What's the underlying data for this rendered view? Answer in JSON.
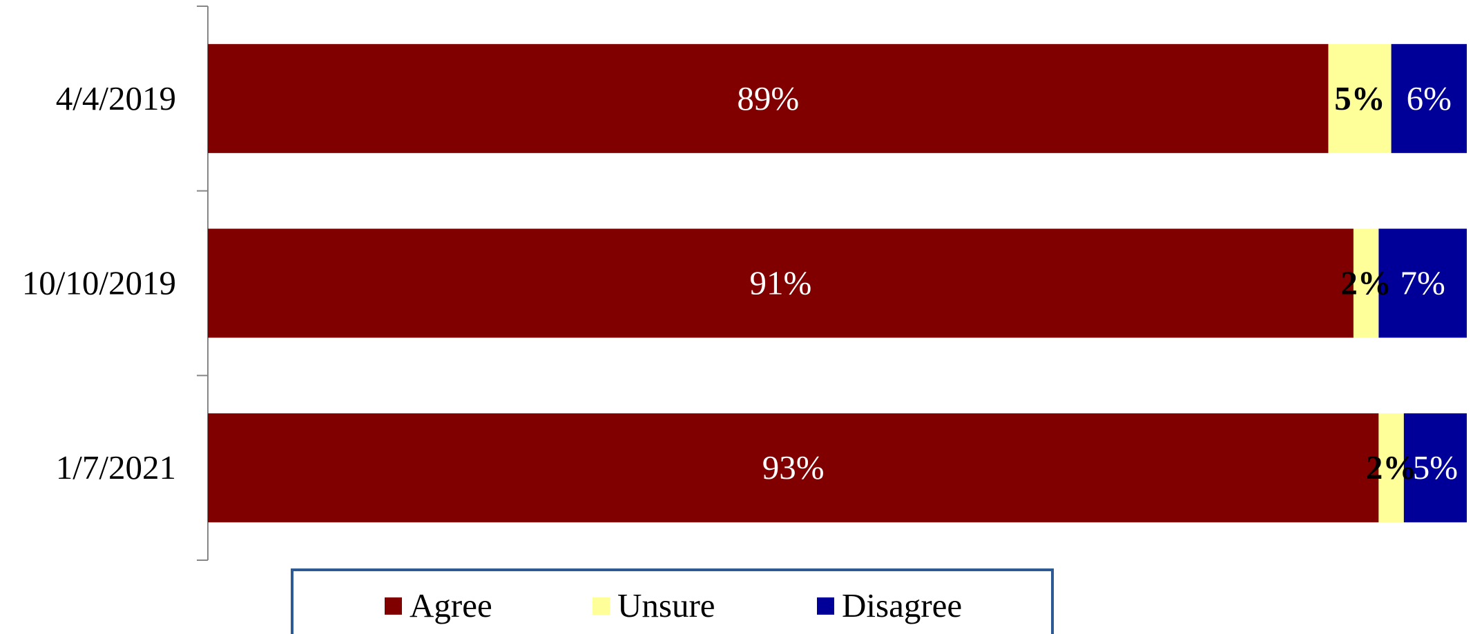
{
  "chart_data": {
    "type": "bar",
    "orientation": "horizontal",
    "stacked": true,
    "categories": [
      "4/4/2019",
      "10/10/2019",
      "1/7/2021"
    ],
    "series": [
      {
        "name": "Agree",
        "values": [
          89,
          91,
          93
        ],
        "labels": [
          "89%",
          "91%",
          "93%"
        ],
        "color": "#800000",
        "label_color": "#ffffff",
        "label_bold": false
      },
      {
        "name": "Unsure",
        "values": [
          5,
          2,
          2
        ],
        "labels": [
          "5%",
          "2%",
          "2%"
        ],
        "color": "#ffff99",
        "label_color": "#000000",
        "label_bold": true
      },
      {
        "name": "Disagree",
        "values": [
          6,
          7,
          5
        ],
        "labels": [
          "6%",
          "7%",
          "5%"
        ],
        "color": "#000099",
        "label_color": "#ffffff",
        "label_bold": false
      }
    ],
    "title": "",
    "xlabel": "",
    "ylabel": "",
    "xlim": [
      0,
      100
    ],
    "grid": false,
    "legend_position": "bottom"
  }
}
